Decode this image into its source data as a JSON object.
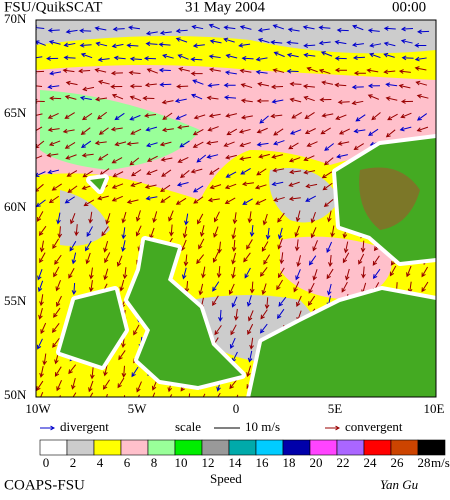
{
  "header": {
    "title": "FSU/QuikSCAT",
    "date": "31 May 2004",
    "time": "00:00"
  },
  "axes": {
    "lat": [
      "70N",
      "65N",
      "60N",
      "55N",
      "50N"
    ],
    "lon": [
      "10W",
      "5W",
      "0",
      "5E",
      "10E"
    ]
  },
  "legend": {
    "divergent": "divergent",
    "scale": "scale",
    "scale_value": "10 m/s",
    "convergent": "convergent",
    "divergent_color": "#0000cc",
    "convergent_color": "#990000"
  },
  "colorbar": {
    "title": "Speed",
    "unit": "m/s",
    "labels": [
      "0",
      "2",
      "4",
      "6",
      "8",
      "10",
      "12",
      "14",
      "16",
      "18",
      "20",
      "22",
      "24",
      "26",
      "28"
    ],
    "colors": [
      "#ffffff",
      "#cccccc",
      "#ffff00",
      "#ffc0cb",
      "#99ff99",
      "#00ee00",
      "#999999",
      "#00aaaa",
      "#00ccff",
      "#0000aa",
      "#ff44ff",
      "#aa66ff",
      "#ff0000",
      "#cc4400",
      "#000000"
    ]
  },
  "footer": {
    "left": "COAPS-FSU",
    "right": "Yan Gu"
  }
}
